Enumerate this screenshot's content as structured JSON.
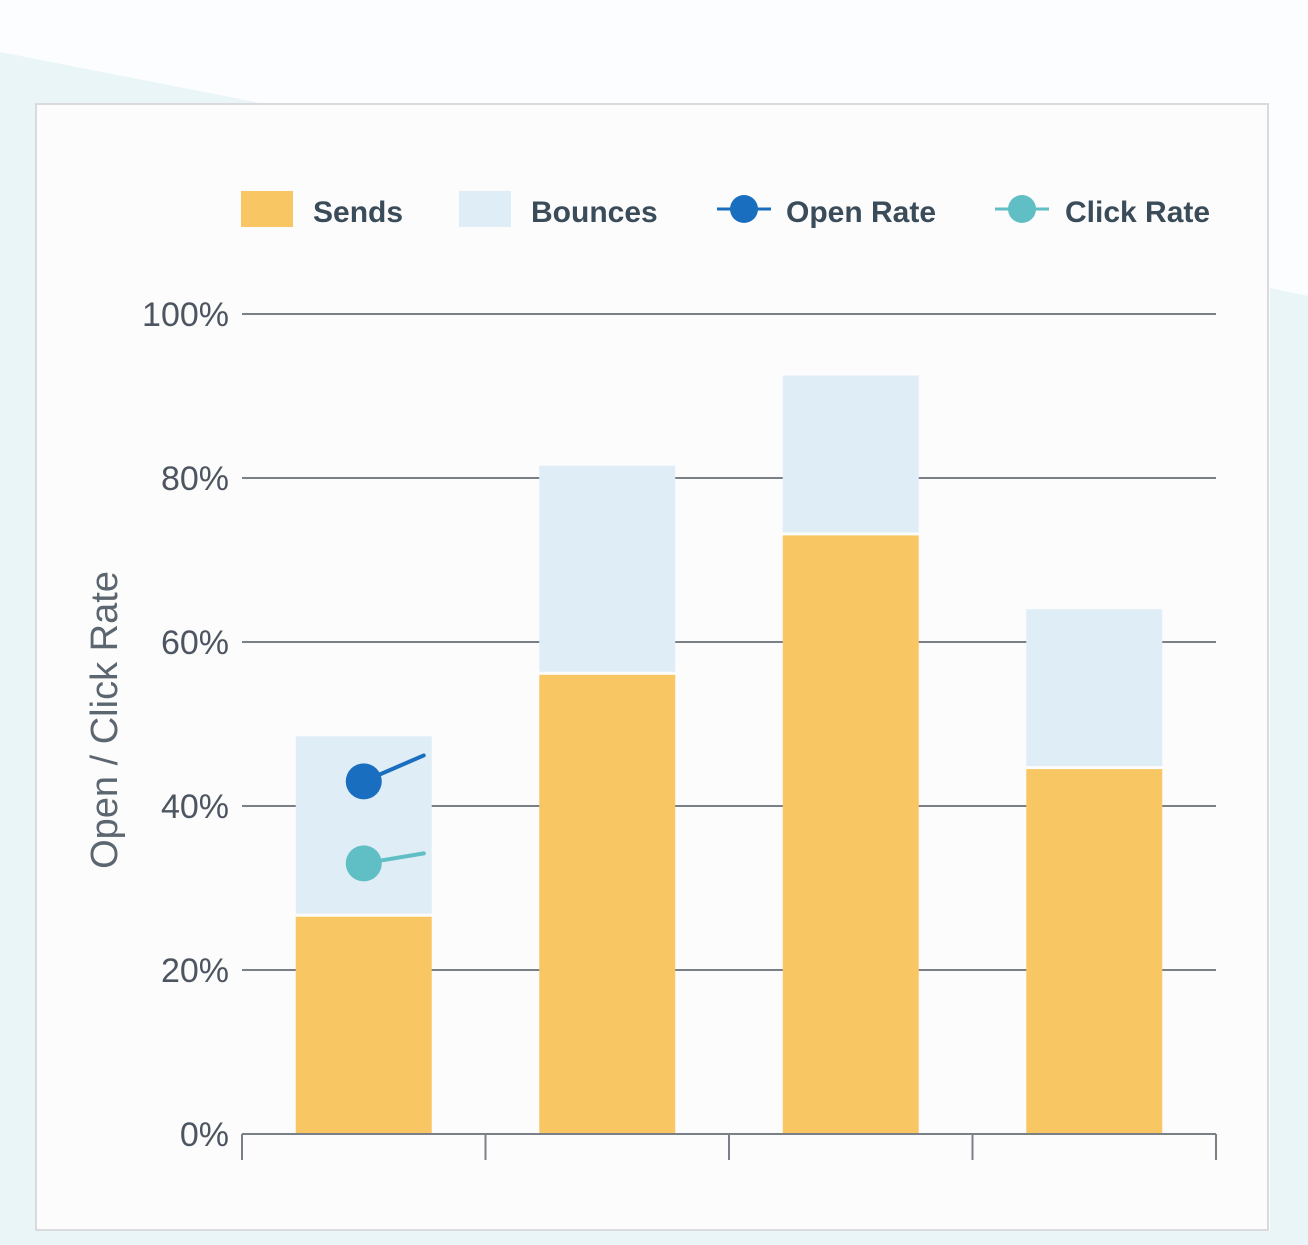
{
  "colors": {
    "sends": "#f8c764",
    "bounces": "#dfedf6",
    "open_rate": "#1a6ebf",
    "click_rate": "#5fbfc5",
    "grid": "#7b8088",
    "background_accent": "#eaf5f8"
  },
  "legend": {
    "sends": "Sends",
    "bounces": "Bounces",
    "open_rate": "Open Rate",
    "click_rate": "Click Rate"
  },
  "chart_data": {
    "type": "bar",
    "stacked": true,
    "ylabel": "Open / Click Rate",
    "ylim": [
      0,
      100
    ],
    "y_ticks": [
      "0%",
      "20%",
      "40%",
      "60%",
      "80%",
      "100%"
    ],
    "y_tick_values": [
      0,
      20,
      40,
      60,
      80,
      100
    ],
    "categories": [
      "",
      "",
      "",
      ""
    ],
    "series": [
      {
        "name": "Sends",
        "values": [
          26.5,
          56,
          73,
          44.5
        ]
      },
      {
        "name": "Bounces",
        "values": [
          22,
          25.5,
          19.5,
          19.5
        ]
      }
    ],
    "markers": [
      {
        "name": "Open Rate",
        "category_index": 0,
        "value": 43
      },
      {
        "name": "Click Rate",
        "category_index": 0,
        "value": 33
      }
    ],
    "grid": true,
    "legend_position": "top"
  }
}
